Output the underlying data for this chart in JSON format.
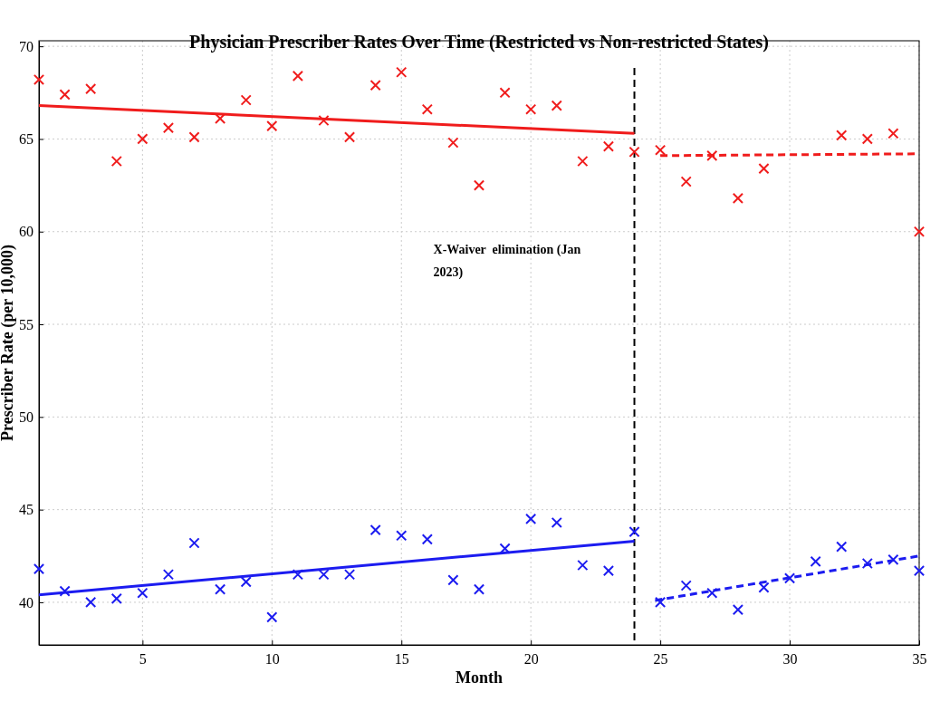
{
  "chart_data": {
    "type": "scatter",
    "title": "Physician Prescriber Rates Over Time (Restricted vs Non-restricted States)",
    "xlabel": "Month",
    "ylabel": "Prescriber Rate (per 10,000)",
    "x": [
      1,
      2,
      3,
      4,
      5,
      6,
      7,
      8,
      9,
      10,
      11,
      12,
      13,
      14,
      15,
      16,
      17,
      18,
      19,
      20,
      21,
      22,
      23,
      24,
      25,
      26,
      27,
      28,
      29,
      30,
      31,
      32,
      33,
      34,
      35
    ],
    "series": [
      {
        "color": "#f01c1c",
        "marker": "cross",
        "values": [
          68.2,
          67.4,
          67.7,
          63.8,
          65.0,
          65.6,
          65.1,
          66.1,
          67.1,
          65.7,
          68.4,
          66.0,
          65.1,
          67.9,
          68.6,
          66.6,
          64.8,
          62.5,
          67.5,
          66.6,
          66.8,
          63.8,
          64.6,
          64.3,
          64.4,
          62.7,
          64.1,
          61.8,
          63.4,
          null,
          null,
          65.2,
          65.0,
          65.3,
          60.0
        ]
      },
      {
        "color": "#1c1cf0",
        "marker": "cross",
        "values": [
          41.8,
          40.6,
          40.0,
          40.2,
          40.5,
          41.5,
          43.2,
          40.7,
          41.1,
          39.2,
          41.5,
          41.5,
          41.5,
          43.9,
          43.6,
          43.4,
          41.2,
          40.7,
          42.9,
          44.5,
          44.3,
          42.0,
          41.7,
          43.8,
          40.0,
          40.9,
          40.5,
          39.6,
          40.8,
          41.3,
          42.2,
          43.0,
          42.1,
          42.3,
          41.7
        ]
      },
      {
        "type": "line",
        "color": "#f01c1c",
        "line_style": "solid",
        "x": [
          1,
          24
        ],
        "values": [
          66.8,
          65.3
        ]
      },
      {
        "type": "line",
        "color": "#f01c1c",
        "line_style": "dashed",
        "x": [
          25,
          35
        ],
        "values": [
          64.1,
          64.2
        ]
      },
      {
        "type": "line",
        "color": "#1c1cf0",
        "line_style": "solid",
        "x": [
          1,
          24
        ],
        "values": [
          40.4,
          43.3
        ]
      },
      {
        "type": "line",
        "color": "#1c1cf0",
        "line_style": "dashed",
        "x": [
          24.8,
          35
        ],
        "values": [
          40.1,
          42.5
        ]
      }
    ],
    "xlim": [
      1,
      35
    ],
    "xticks": [
      5,
      10,
      15,
      20,
      25,
      30,
      35
    ],
    "ylim": [
      37.7,
      70.3
    ],
    "yticks": [
      70,
      65,
      60,
      55,
      50,
      45,
      40
    ],
    "grid": true,
    "ref_lines": [
      {
        "axis": "x",
        "value": 24,
        "label": "X-Waiver  elimination (Jan 2023)",
        "color": "#000000",
        "line_style": "dashed"
      }
    ]
  }
}
